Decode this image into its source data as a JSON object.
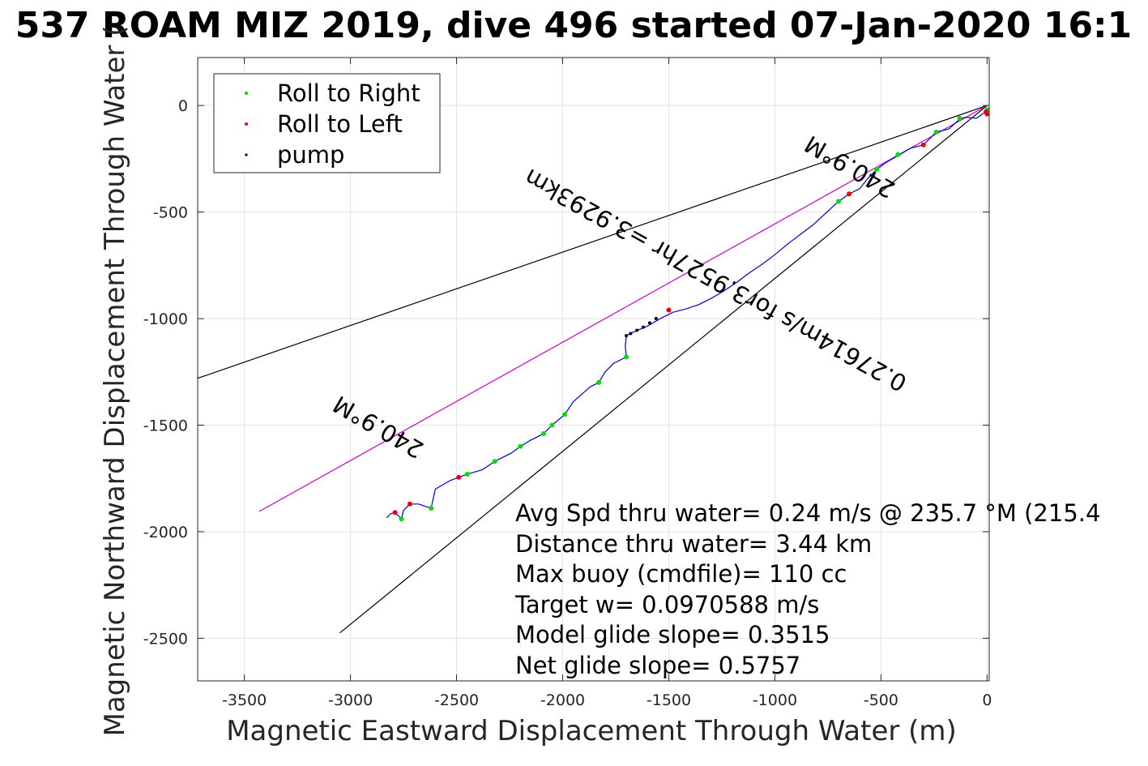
{
  "chart_data": {
    "type": "line",
    "title": "537 ROAM MIZ 2019, dive 496 started 07-Jan-2020 16:1",
    "xlabel": "Magnetic Eastward Displacement Through Water (m)",
    "ylabel": "Magnetic Northward Displacement Through Water (",
    "xlim": [
      -3720,
      10
    ],
    "ylim": [
      -2700,
      225
    ],
    "xticks": [
      -3500,
      -3000,
      -2500,
      -2000,
      -1500,
      -1000,
      -500,
      0
    ],
    "yticks": [
      0,
      -500,
      -1000,
      -1500,
      -2000,
      -2500
    ],
    "grid": true,
    "legend_placement": "top-left",
    "legend": [
      {
        "label": "Roll to Right",
        "color": "#00dd00"
      },
      {
        "label": "Roll to Left",
        "color": "#ee0000"
      },
      {
        "label": "pump",
        "color": "#000000"
      }
    ],
    "reference_lines": [
      {
        "color": "#000000",
        "points": [
          [
            0,
            0
          ],
          [
            -3720,
            -1280
          ]
        ]
      },
      {
        "color": "#000000",
        "points": [
          [
            0,
            0
          ],
          [
            -3050,
            -2475
          ]
        ]
      },
      {
        "color": "#cc00cc",
        "points": [
          [
            0,
            0
          ],
          [
            -3430,
            -1905
          ]
        ]
      }
    ],
    "track": {
      "color": "#0000cc",
      "points": [
        [
          0,
          -25
        ],
        [
          -50,
          -60
        ],
        [
          -100,
          -55
        ],
        [
          -130,
          -65
        ],
        [
          -180,
          -110
        ],
        [
          -240,
          -125
        ],
        [
          -300,
          -185
        ],
        [
          -360,
          -200
        ],
        [
          -420,
          -235
        ],
        [
          -480,
          -270
        ],
        [
          -520,
          -300
        ],
        [
          -560,
          -340
        ],
        [
          -600,
          -390
        ],
        [
          -650,
          -415
        ],
        [
          -700,
          -450
        ],
        [
          -760,
          -505
        ],
        [
          -820,
          -560
        ],
        [
          -880,
          -605
        ],
        [
          -940,
          -650
        ],
        [
          -1000,
          -700
        ],
        [
          -1060,
          -745
        ],
        [
          -1120,
          -785
        ],
        [
          -1180,
          -830
        ],
        [
          -1240,
          -870
        ],
        [
          -1300,
          -905
        ],
        [
          -1360,
          -935
        ],
        [
          -1420,
          -955
        ],
        [
          -1480,
          -970
        ],
        [
          -1540,
          -1000
        ],
        [
          -1600,
          -1035
        ],
        [
          -1660,
          -1060
        ],
        [
          -1690,
          -1075
        ],
        [
          -1700,
          -1080
        ],
        [
          -1705,
          -1130
        ],
        [
          -1700,
          -1180
        ],
        [
          -1760,
          -1210
        ],
        [
          -1800,
          -1250
        ],
        [
          -1830,
          -1300
        ],
        [
          -1870,
          -1320
        ],
        [
          -1950,
          -1390
        ],
        [
          -1990,
          -1450
        ],
        [
          -2050,
          -1500
        ],
        [
          -2090,
          -1540
        ],
        [
          -2150,
          -1570
        ],
        [
          -2200,
          -1600
        ],
        [
          -2240,
          -1630
        ],
        [
          -2320,
          -1670
        ],
        [
          -2380,
          -1710
        ],
        [
          -2450,
          -1730
        ],
        [
          -2490,
          -1745
        ],
        [
          -2530,
          -1760
        ],
        [
          -2600,
          -1800
        ],
        [
          -2620,
          -1890
        ],
        [
          -2680,
          -1870
        ],
        [
          -2720,
          -1870
        ],
        [
          -2750,
          -1900
        ],
        [
          -2760,
          -1940
        ],
        [
          -2790,
          -1910
        ],
        [
          -2810,
          -1915
        ],
        [
          -2830,
          -1935
        ]
      ]
    },
    "roll_right_points": [
      [
        -130,
        -60
      ],
      [
        -240,
        -125
      ],
      [
        -420,
        -230
      ],
      [
        -520,
        -300
      ],
      [
        -700,
        -450
      ],
      [
        -1700,
        -1180
      ],
      [
        -1830,
        -1300
      ],
      [
        -1990,
        -1450
      ],
      [
        -2050,
        -1500
      ],
      [
        -2090,
        -1540
      ],
      [
        -2200,
        -1600
      ],
      [
        -2320,
        -1670
      ],
      [
        -2450,
        -1730
      ],
      [
        -2620,
        -1890
      ],
      [
        -2760,
        -1940
      ],
      [
        0,
        -20
      ]
    ],
    "roll_left_points": [
      [
        -300,
        -185
      ],
      [
        -650,
        -415
      ],
      [
        -1500,
        -960
      ],
      [
        -2490,
        -1745
      ],
      [
        -2720,
        -1870
      ],
      [
        -2790,
        -1910
      ],
      [
        -5,
        -30
      ],
      [
        0,
        -40
      ]
    ],
    "pump_points": [
      [
        -1560,
        -1000
      ],
      [
        -1590,
        -1020
      ],
      [
        -1620,
        -1040
      ],
      [
        -1650,
        -1055
      ],
      [
        -1680,
        -1070
      ],
      [
        -1700,
        -1080
      ]
    ]
  },
  "annotations": {
    "heading_label": "240.9°M",
    "center_label": "0.27614m/s for3.9527hr =3.9293km"
  },
  "info_lines": [
    "Avg Spd thru water=  0.24 m/s @ 235.7 °M (215.4",
    "Distance thru water=  3.44 km",
    "Max buoy (cmdfile)= 110 cc",
    "Target w= 0.0970588 m/s",
    "Model glide slope= 0.3515",
    "Net glide slope= 0.5757"
  ]
}
